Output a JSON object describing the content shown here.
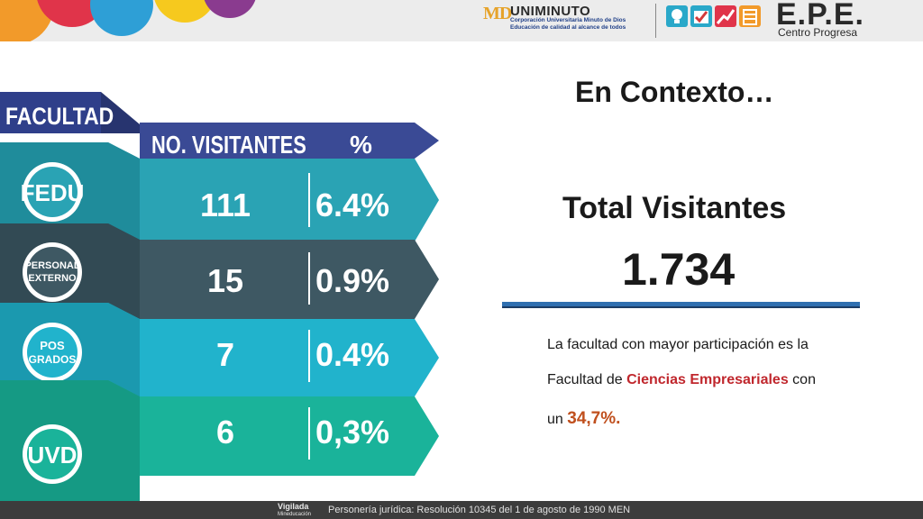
{
  "header": {
    "uni_logo_text": "MD",
    "uni_name": "UNIMINUTO",
    "uni_line1": "Corporación Universitaria Minuto de Dios",
    "uni_line2": "Educación de calidad al alcance de todos",
    "epe_title": "E.P.E.",
    "epe_subtitle": "Centro Progresa"
  },
  "table": {
    "header_faculty": "FACULTAD",
    "header_visitors": "NO. VISITANTES",
    "header_pct": "%",
    "rows": [
      {
        "label_line1": "FEDU",
        "label_line2": "",
        "visitors": "111",
        "pct": "6.4%",
        "color": "#2aa3b4"
      },
      {
        "label_line1": "PERSONAL",
        "label_line2": "EXTERNO",
        "visitors": "15",
        "pct": "0.9%",
        "color": "#3e5863"
      },
      {
        "label_line1": "POS",
        "label_line2": "GRADOS",
        "visitors": "7",
        "pct": "0.4%",
        "color": "#21b3cc"
      },
      {
        "label_line1": "UVD",
        "label_line2": "",
        "visitors": "6",
        "pct": "0,3%",
        "color": "#1ab39a"
      }
    ]
  },
  "content": {
    "title": "En Contexto…",
    "total_label": "Total Visitantes",
    "total_value": "1.734",
    "desc_line1": "La facultad con mayor participación es la",
    "desc_line2_pre": "Facultad de ",
    "desc_line2_highlight": "Ciencias Empresariales",
    "desc_line2_post": " con",
    "desc_line3_pre": "un ",
    "desc_line3_highlight": "34,7%."
  },
  "footer": {
    "vigilada_line1": "Vigilada",
    "vigilada_line2": "Mineducación",
    "text": "Personería jurídica: Resolución 10345 del 1 de agosto de 1990 MEN"
  },
  "colors": {
    "header_navy": "#2f3f8a",
    "accent_red": "#c0272d",
    "accent_orange": "#c0501e",
    "line_blue": "#2f6fb0"
  }
}
